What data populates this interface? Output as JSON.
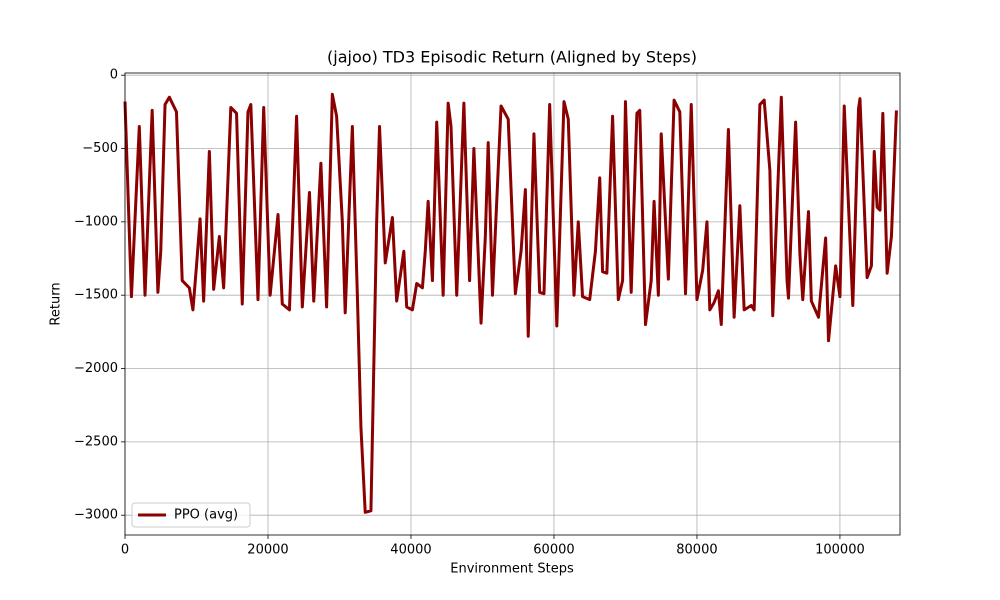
{
  "chart_data": {
    "type": "line",
    "title": "(jajoo) TD3 Episodic Return (Aligned by Steps)",
    "xlabel": "Environment Steps",
    "ylabel": "Return",
    "x": [
      0,
      900,
      2000,
      2800,
      3800,
      4600,
      5000,
      5600,
      6200,
      7200,
      8000,
      9000,
      9500,
      10000,
      10500,
      11000,
      11800,
      12400,
      13200,
      13800,
      14800,
      15600,
      16400,
      17200,
      17600,
      18600,
      19400,
      20300,
      21400,
      22000,
      23000,
      24000,
      24800,
      25800,
      26400,
      27400,
      28200,
      29000,
      29600,
      30400,
      30800,
      31800,
      32500,
      33000,
      33600,
      34400,
      35200,
      35600,
      36400,
      37400,
      38000,
      39000,
      39400,
      40200,
      40800,
      41600,
      42000,
      42400,
      43000,
      43600,
      44500,
      45200,
      45600,
      46400,
      47400,
      48200,
      48800,
      49800,
      50400,
      50800,
      51400,
      52600,
      53600,
      54600,
      55400,
      56000,
      56400,
      57200,
      58000,
      58600,
      59400,
      60400,
      61400,
      62000,
      62800,
      63400,
      64000,
      65000,
      65800,
      66400,
      66800,
      67400,
      68200,
      69000,
      69600,
      70000,
      70800,
      71600,
      72000,
      72800,
      73600,
      74000,
      74600,
      75000,
      76000,
      76800,
      77600,
      78400,
      79200,
      80000,
      80800,
      81400,
      81800,
      82400,
      83000,
      83400,
      84400,
      85200,
      86000,
      86600,
      87600,
      88000,
      88800,
      89400,
      90200,
      90600,
      91800,
      92600,
      92800,
      93800,
      94400,
      94800,
      95600,
      96000,
      97000,
      98000,
      98400,
      99400,
      100000,
      100600,
      101800,
      102600,
      102800,
      103800,
      104400,
      104800,
      105200,
      105600,
      106000,
      106600,
      107200,
      107900
    ],
    "series": [
      {
        "name": "PPO (avg)",
        "color": "#8b0000",
        "values": [
          -180,
          -1510,
          -350,
          -1500,
          -240,
          -1480,
          -1200,
          -200,
          -150,
          -250,
          -1400,
          -1450,
          -1600,
          -1300,
          -980,
          -1540,
          -520,
          -1460,
          -1100,
          -1450,
          -220,
          -260,
          -1560,
          -250,
          -200,
          -1530,
          -220,
          -1500,
          -950,
          -1560,
          -1600,
          -280,
          -1580,
          -800,
          -1540,
          -600,
          -1580,
          -130,
          -280,
          -1000,
          -1620,
          -350,
          -1500,
          -2400,
          -2980,
          -2970,
          -1000,
          -350,
          -1280,
          -970,
          -1540,
          -1200,
          -1580,
          -1600,
          -1420,
          -1450,
          -1200,
          -860,
          -1400,
          -320,
          -1500,
          -190,
          -350,
          -1500,
          -190,
          -1400,
          -500,
          -1690,
          -1100,
          -460,
          -1500,
          -210,
          -300,
          -1490,
          -1200,
          -780,
          -1780,
          -400,
          -1480,
          -1490,
          -200,
          -1710,
          -180,
          -300,
          -1500,
          -1000,
          -1510,
          -1530,
          -1200,
          -700,
          -1340,
          -1350,
          -280,
          -1530,
          -1400,
          -180,
          -1480,
          -260,
          -240,
          -1700,
          -1400,
          -860,
          -1500,
          -400,
          -1390,
          -170,
          -250,
          -1490,
          -200,
          -1530,
          -1330,
          -1000,
          -1600,
          -1550,
          -1470,
          -1700,
          -370,
          -1650,
          -890,
          -1600,
          -1570,
          -1600,
          -200,
          -170,
          -650,
          -1640,
          -150,
          -1400,
          -1520,
          -320,
          -1220,
          -1530,
          -930,
          -1540,
          -1650,
          -1110,
          -1810,
          -1300,
          -1510,
          -210,
          -1570,
          -230,
          -160,
          -1380,
          -1300,
          -520,
          -900,
          -920,
          -260,
          -1350,
          -1100,
          -240
        ]
      }
    ],
    "xlim": [
      0,
      108400
    ],
    "ylim": [
      -3135,
      15
    ],
    "xticks": [
      0,
      20000,
      40000,
      60000,
      80000,
      100000
    ],
    "yticks": [
      0,
      {
        "value": -500,
        "label": "−500"
      },
      {
        "value": -1000,
        "label": "−1000"
      },
      {
        "value": -1500,
        "label": "−1500"
      },
      {
        "value": -2000,
        "label": "−2000"
      },
      {
        "value": -2500,
        "label": "−2500"
      },
      {
        "value": -3000,
        "label": "−3000"
      }
    ],
    "grid": true,
    "legend": "lower left"
  }
}
